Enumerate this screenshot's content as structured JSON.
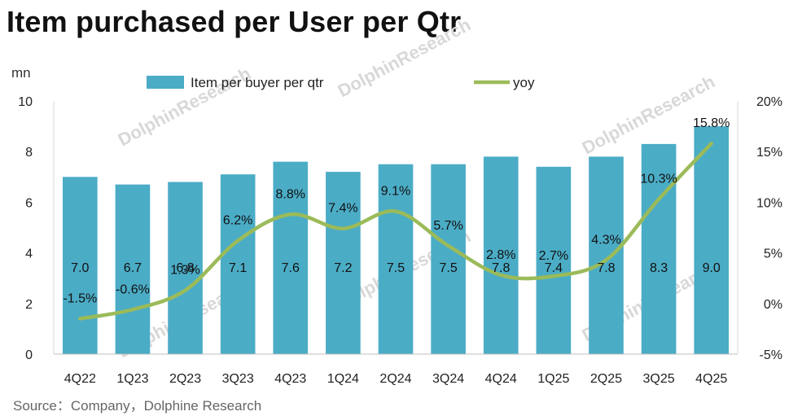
{
  "title": "Item purchased per User per Qtr",
  "unit": "mn",
  "source": "Source：Company，Dolphine Research",
  "watermark": "DolphinResearch",
  "colors": {
    "bar": "#4bacc6",
    "line": "#9bbb59"
  },
  "chart_data": {
    "type": "bar",
    "categories": [
      "4Q22",
      "1Q23",
      "2Q23",
      "3Q23",
      "4Q23",
      "1Q24",
      "2Q24",
      "3Q24",
      "4Q24",
      "1Q25",
      "2Q25",
      "3Q25",
      "4Q25"
    ],
    "series": [
      {
        "name": "Item per buyer per qtr",
        "type": "bar",
        "axis": "left",
        "values": [
          7.0,
          6.7,
          6.8,
          7.1,
          7.6,
          7.2,
          7.5,
          7.5,
          7.8,
          7.4,
          7.8,
          8.3,
          9.0
        ],
        "labels": [
          "7.0",
          "6.7",
          "6.8",
          "7.1",
          "7.6",
          "7.2",
          "7.5",
          "7.5",
          "7.8",
          "7.4",
          "7.8",
          "8.3",
          "9.0"
        ]
      },
      {
        "name": "yoy",
        "type": "line",
        "axis": "right",
        "values": [
          -1.5,
          -0.6,
          1.3,
          6.2,
          8.8,
          7.4,
          9.1,
          5.7,
          2.8,
          2.7,
          4.3,
          10.3,
          15.8
        ],
        "labels": [
          "-1.5%",
          "-0.6%",
          "1.3%",
          "6.2%",
          "8.8%",
          "7.4%",
          "9.1%",
          "5.7%",
          "2.8%",
          "2.7%",
          "4.3%",
          "10.3%",
          "15.8%"
        ]
      }
    ],
    "y_left": {
      "min": 0,
      "max": 10,
      "ticks": [
        "0",
        "2",
        "4",
        "6",
        "8",
        "10"
      ]
    },
    "y_right": {
      "min": -5,
      "max": 20,
      "ticks": [
        "-5%",
        "0%",
        "5%",
        "10%",
        "15%",
        "20%"
      ]
    },
    "legend": {
      "placement": "top-center",
      "entries": [
        "Item per buyer per qtr",
        "yoy"
      ]
    },
    "grid": false
  }
}
